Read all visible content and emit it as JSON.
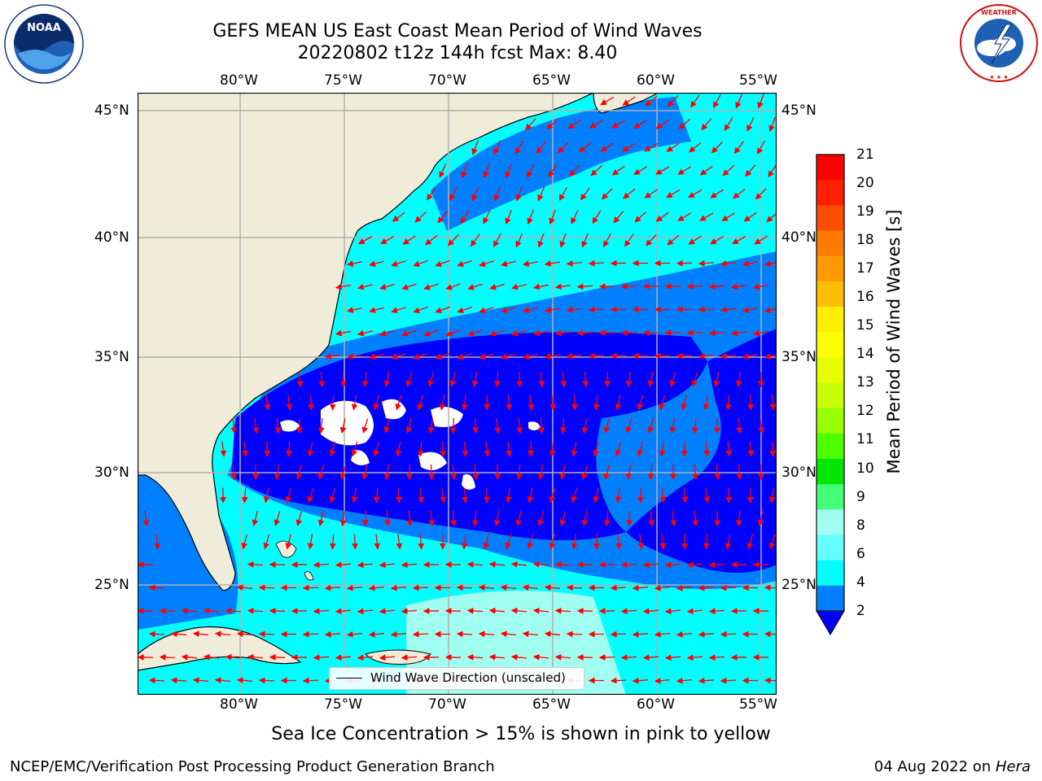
{
  "header": {
    "title_line1": "GEFS MEAN US East Coast Mean Period of Wind Waves",
    "title_line2": "20220802 t12z 144h fcst   Max: 8.40"
  },
  "logos": {
    "left": "NOAA",
    "right_ring_text": "NATIONAL WEATHER SERVICE",
    "left_ring_text": "NATIONAL OCEANIC AND ATMOSPHERIC ADMINISTRATION U.S. DEPARTMENT OF COMMERCE"
  },
  "map": {
    "lon_labels": [
      "80°W",
      "75°W",
      "70°W",
      "65°W",
      "60°W",
      "55°W"
    ],
    "lat_labels": [
      "45°N",
      "40°N",
      "35°N",
      "30°N",
      "25°N"
    ],
    "legend_label": "Wind Wave Direction (unscaled)",
    "colors": {
      "land": "#efedda",
      "ocean_cyan": "#00ffff",
      "ocean_blue": "#0080ff",
      "ocean_dark": "#0000ff",
      "arrows": "#ff0000"
    }
  },
  "colorbar": {
    "label": "Mean Period of Wind Waves [s]",
    "tick_labels": [
      "21",
      "20",
      "19",
      "18",
      "17",
      "16",
      "15",
      "14",
      "13",
      "12",
      "11",
      "10",
      "9",
      "8",
      "6",
      "4",
      "2"
    ],
    "colors_top_to_bottom": [
      "#ff0000",
      "#ff2000",
      "#ff4d00",
      "#ff7a00",
      "#ff9900",
      "#ffbf00",
      "#ffee00",
      "#ffff00",
      "#e6ff00",
      "#c8ff00",
      "#99ff00",
      "#4dff00",
      "#00e600",
      "#44ff77",
      "#a0fff0",
      "#66ffff",
      "#00ffff",
      "#0080ff"
    ],
    "underflow_color": "#0000ff"
  },
  "footer": {
    "caption": "Sea Ice Concentration > 15% is shown in pink to yellow",
    "left": "NCEP/EMC/Verification Post Processing Product Generation Branch",
    "right_date": "04 Aug 2022 on ",
    "right_machine": "Hera"
  }
}
